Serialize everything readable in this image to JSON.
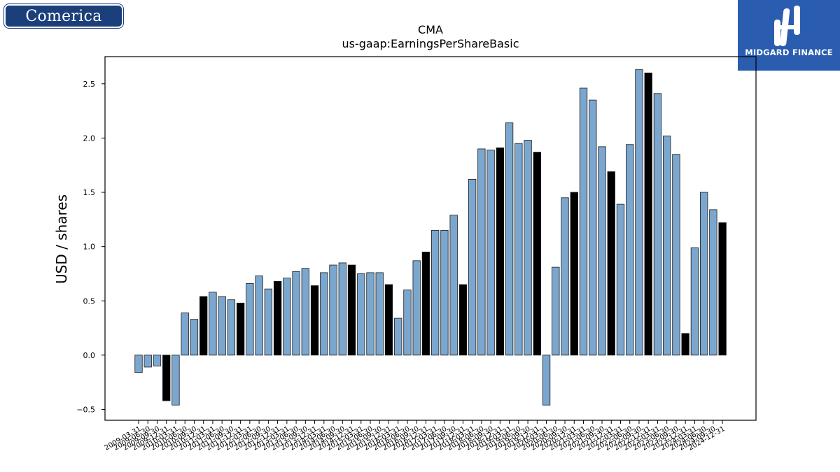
{
  "logos": {
    "left_text": "Comerica",
    "right_text": "MIDGARD FINANCE"
  },
  "colors": {
    "bar_blue": "#7ba7cf",
    "bar_black": "#000000",
    "edge": "#1a1a1a",
    "comerica_navy": "#1b3f7a",
    "midgard_blue": "#2a5db0"
  },
  "chart_data": {
    "type": "bar",
    "title": "CMA",
    "subtitle": "us-gaap:EarningsPerShareBasic",
    "xlabel": "",
    "ylabel": "USD / shares",
    "ylim": [
      -0.6,
      2.75
    ],
    "yticks": [
      -0.5,
      0.0,
      0.5,
      1.0,
      1.5,
      2.0,
      2.5
    ],
    "ytick_labels": [
      "−0.5",
      "0.0",
      "0.5",
      "1.0",
      "1.5",
      "2.0",
      "2.5"
    ],
    "grid": false,
    "categories": [
      "2009-03-31",
      "2009-06-30",
      "2009-09-30",
      "2009-12-31",
      "2010-03-31",
      "2010-06-30",
      "2010-09-30",
      "2010-12-31",
      "2011-03-31",
      "2011-06-30",
      "2011-09-30",
      "2011-12-31",
      "2012-03-31",
      "2012-06-30",
      "2012-09-30",
      "2012-12-31",
      "2013-03-31",
      "2013-06-30",
      "2013-09-30",
      "2013-12-31",
      "2014-03-31",
      "2014-06-30",
      "2014-09-30",
      "2014-12-31",
      "2015-03-31",
      "2015-06-30",
      "2015-09-30",
      "2015-12-31",
      "2016-03-31",
      "2016-06-30",
      "2016-09-30",
      "2016-12-31",
      "2017-03-31",
      "2017-06-30",
      "2017-09-30",
      "2017-12-31",
      "2018-03-31",
      "2018-06-30",
      "2018-09-30",
      "2018-12-31",
      "2019-03-31",
      "2019-06-30",
      "2019-09-30",
      "2019-12-31",
      "2020-03-31",
      "2020-06-30",
      "2020-09-30",
      "2020-12-31",
      "2021-03-31",
      "2021-06-30",
      "2021-09-30",
      "2021-12-31",
      "2022-03-31",
      "2022-06-30",
      "2022-09-30",
      "2022-12-31",
      "2023-03-31",
      "2023-06-30",
      "2023-09-30",
      "2023-12-31",
      "2024-03-31",
      "2024-06-30",
      "2024-09-30",
      "2024-12-31"
    ],
    "values": [
      -0.16,
      -0.11,
      -0.1,
      -0.42,
      -0.46,
      0.39,
      0.33,
      0.54,
      0.58,
      0.54,
      0.51,
      0.48,
      0.66,
      0.73,
      0.61,
      0.68,
      0.71,
      0.77,
      0.8,
      0.64,
      0.76,
      0.83,
      0.85,
      0.83,
      0.75,
      0.76,
      0.76,
      0.65,
      0.34,
      0.6,
      0.87,
      0.95,
      1.15,
      1.15,
      1.29,
      0.65,
      1.62,
      1.9,
      1.89,
      1.91,
      2.14,
      1.95,
      1.98,
      1.87,
      -0.46,
      0.81,
      1.45,
      1.5,
      2.46,
      2.35,
      1.92,
      1.69,
      1.39,
      1.94,
      2.63,
      2.6,
      2.41,
      2.02,
      1.85,
      0.2,
      0.99,
      1.5,
      1.34,
      1.22
    ],
    "bar_colors": [
      "blue",
      "blue",
      "blue",
      "black",
      "blue",
      "blue",
      "blue",
      "black",
      "blue",
      "blue",
      "blue",
      "black",
      "blue",
      "blue",
      "blue",
      "black",
      "blue",
      "blue",
      "blue",
      "black",
      "blue",
      "blue",
      "blue",
      "black",
      "blue",
      "blue",
      "blue",
      "black",
      "blue",
      "blue",
      "blue",
      "black",
      "blue",
      "blue",
      "blue",
      "black",
      "blue",
      "blue",
      "blue",
      "black",
      "blue",
      "blue",
      "blue",
      "black",
      "blue",
      "blue",
      "blue",
      "black",
      "blue",
      "blue",
      "blue",
      "black",
      "blue",
      "blue",
      "blue",
      "black",
      "blue",
      "blue",
      "blue",
      "black",
      "blue",
      "blue",
      "blue",
      "black"
    ]
  }
}
